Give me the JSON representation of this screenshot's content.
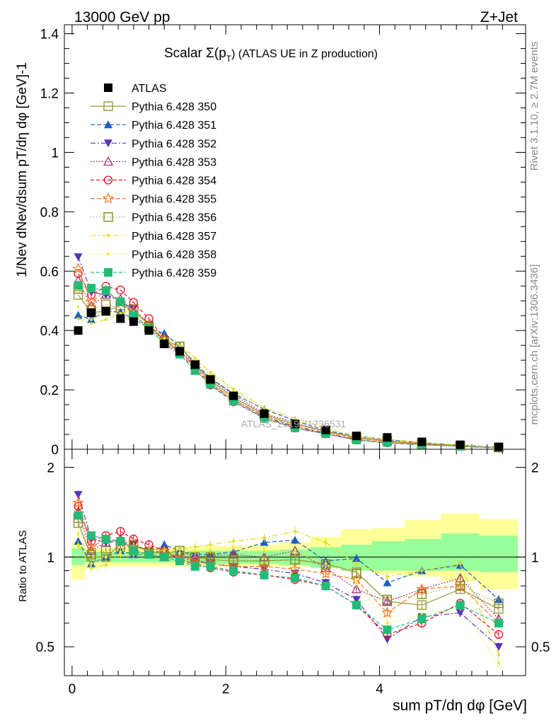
{
  "header": {
    "left": "13000 GeV pp",
    "right": "Z+Jet"
  },
  "side_text": {
    "rivet": "Rivet 3.1.10, ≥ 2.7M events",
    "mcplots": "mcplots.cern.ch [arXiv:1306.3436]"
  },
  "watermark": "ATLAS_2019_I1736531",
  "colors": {
    "band_outer": "#ffff99",
    "band_inner": "#99ff99",
    "ATLAS": "#000000",
    "350": "#999933",
    "351": "#1f5fbf",
    "352": "#5533bb",
    "353": "#aa3377",
    "354": "#ee1122",
    "355": "#ff7722",
    "356": "#888822",
    "357": "#dddd22",
    "358": "#eeee33",
    "359": "#22bb77"
  },
  "chart_data": {
    "type": "line",
    "title": "Scalar Σ(pT) (ATLAS UE in Z production)",
    "title_main": "Scalar Σ(p",
    "title_sub": "T",
    "title_tail": ") (ATLAS UE in Z production)",
    "ylabel": "1/Nev dNev/dsum pT/dη dφ [GeV]-1",
    "xlabel": "sum pT/dη dφ [GeV]",
    "ratio_ylabel": "Ratio to ATLAS",
    "xlim": [
      -0.1,
      5.9
    ],
    "ylim": [
      0,
      1.43
    ],
    "ratio_ylim": [
      0.4,
      2.3
    ],
    "ratio_log": true,
    "legend_position": "top-left",
    "x_ticks": [
      "0",
      "2",
      "4"
    ],
    "y_ticks": [
      "0",
      "0.2",
      "0.4",
      "0.6",
      "0.8",
      "1",
      "1.2",
      "1.4"
    ],
    "ratio_ticks_left": [
      "0.5",
      "1",
      "2"
    ],
    "ratio_ticks_right": [
      "0.5",
      "1",
      "2"
    ],
    "x": [
      0.08,
      0.25,
      0.44,
      0.63,
      0.8,
      1.0,
      1.2,
      1.4,
      1.6,
      1.8,
      2.1,
      2.5,
      2.9,
      3.3,
      3.7,
      4.1,
      4.55,
      5.05,
      5.55
    ],
    "data": {
      "name": "ATLAS",
      "values": [
        0.4,
        0.46,
        0.465,
        0.44,
        0.43,
        0.4,
        0.355,
        0.33,
        0.285,
        0.235,
        0.18,
        0.12,
        0.085,
        0.065,
        0.045,
        0.04,
        0.025,
        0.015,
        0.008
      ]
    },
    "band_outer": [
      [
        0.84,
        1.12
      ],
      [
        0.91,
        1.07
      ],
      [
        0.93,
        1.07
      ],
      [
        0.93,
        1.07
      ],
      [
        0.93,
        1.08
      ],
      [
        0.93,
        1.08
      ],
      [
        0.93,
        1.08
      ],
      [
        0.93,
        1.08
      ],
      [
        0.93,
        1.09
      ],
      [
        0.93,
        1.09
      ],
      [
        0.93,
        1.09
      ],
      [
        0.93,
        1.1
      ],
      [
        0.93,
        1.12
      ],
      [
        0.93,
        1.17
      ],
      [
        0.92,
        1.24
      ],
      [
        0.88,
        1.25
      ],
      [
        0.86,
        1.33
      ],
      [
        0.83,
        1.4
      ],
      [
        0.78,
        1.34
      ]
    ],
    "band_inner": [
      [
        0.94,
        1.07
      ],
      [
        0.96,
        1.04
      ],
      [
        0.96,
        1.04
      ],
      [
        0.96,
        1.04
      ],
      [
        0.96,
        1.04
      ],
      [
        0.96,
        1.04
      ],
      [
        0.96,
        1.04
      ],
      [
        0.96,
        1.04
      ],
      [
        0.95,
        1.05
      ],
      [
        0.95,
        1.05
      ],
      [
        0.95,
        1.05
      ],
      [
        0.95,
        1.05
      ],
      [
        0.94,
        1.06
      ],
      [
        0.92,
        1.08
      ],
      [
        0.9,
        1.1
      ],
      [
        0.9,
        1.13
      ],
      [
        0.9,
        1.15
      ],
      [
        0.9,
        1.2
      ],
      [
        0.89,
        1.18
      ]
    ],
    "series": [
      {
        "name": "Pythia 6.428 350",
        "key": "350",
        "marker": "square-open",
        "dash": "",
        "ratio": [
          1.3,
          1.0,
          1.0,
          1.1,
          1.1,
          1.04,
          1.03,
          1.05,
          1.0,
          0.98,
          0.97,
          0.97,
          0.98,
          0.95,
          0.89,
          0.71,
          0.69,
          0.78,
          0.67
        ]
      },
      {
        "name": "Pythia 6.428 351",
        "key": "351",
        "marker": "triangle-up-filled",
        "dash": "6,3",
        "ratio": [
          1.13,
          0.95,
          1.0,
          1.05,
          1.02,
          1.02,
          1.1,
          1.05,
          1.02,
          1.02,
          1.04,
          1.12,
          1.14,
          0.97,
          0.99,
          0.82,
          0.9,
          0.94,
          0.72
        ]
      },
      {
        "name": "Pythia 6.428 352",
        "key": "352",
        "marker": "triangle-down-filled",
        "dash": "7,3,2,3",
        "ratio": [
          1.62,
          1.15,
          1.12,
          1.13,
          1.1,
          1.05,
          1.03,
          1.0,
          0.97,
          0.95,
          0.93,
          0.91,
          0.88,
          0.82,
          0.72,
          0.53,
          0.63,
          0.65,
          0.5
        ]
      },
      {
        "name": "Pythia 6.428 353",
        "key": "353",
        "marker": "triangle-up-open",
        "dash": "2,2",
        "ratio": [
          1.42,
          1.05,
          1.12,
          1.15,
          1.05,
          1.02,
          1.0,
          1.0,
          1.0,
          1.01,
          1.02,
          1.0,
          1.05,
          0.92,
          0.78,
          0.71,
          0.78,
          0.85,
          0.62
        ]
      },
      {
        "name": "Pythia 6.428 354",
        "key": "354",
        "marker": "circle-open",
        "dash": "5,3",
        "ratio": [
          1.48,
          1.13,
          1.18,
          1.22,
          1.15,
          1.1,
          1.05,
          0.98,
          0.95,
          0.92,
          0.89,
          0.87,
          0.84,
          0.8,
          0.69,
          0.55,
          0.6,
          0.7,
          0.55
        ]
      },
      {
        "name": "Pythia 6.428 355",
        "key": "355",
        "marker": "star-open",
        "dash": "6,3",
        "ratio": [
          1.52,
          1.08,
          1.15,
          1.12,
          1.08,
          1.05,
          1.04,
          1.0,
          0.98,
          0.95,
          0.93,
          0.93,
          0.91,
          0.88,
          0.84,
          0.65,
          0.78,
          0.8,
          0.6
        ]
      },
      {
        "name": "Pythia 6.428 356",
        "key": "356",
        "marker": "square-open",
        "dash": "1,3",
        "ratio": [
          1.35,
          1.02,
          1.05,
          1.08,
          1.05,
          1.03,
          1.02,
          1.05,
          1.0,
          1.0,
          0.98,
          0.97,
          0.98,
          0.94,
          0.88,
          0.72,
          0.75,
          0.8,
          0.7
        ]
      },
      {
        "name": "Pythia 6.428 357",
        "key": "357",
        "marker": "dot",
        "dash": "8,3,2,3",
        "ratio": [
          1.1,
          0.92,
          0.94,
          1.04,
          1.08,
          1.05,
          1.05,
          1.06,
          1.08,
          1.1,
          1.13,
          1.16,
          1.22,
          1.12,
          0.95,
          0.86,
          0.9,
          0.95,
          0.47
        ]
      },
      {
        "name": "Pythia 6.428 358",
        "key": "358",
        "marker": "dot",
        "dash": "1,2",
        "ratio": [
          1.2,
          0.95,
          1.0,
          1.02,
          1.02,
          1.02,
          1.02,
          1.03,
          1.05,
          1.06,
          1.08,
          1.06,
          1.04,
          0.95,
          0.82,
          0.6,
          0.64,
          0.68,
          0.44
        ]
      },
      {
        "name": "Pythia 6.428 359",
        "key": "359",
        "marker": "square-filled",
        "dash": "5,3",
        "ratio": [
          1.38,
          1.18,
          1.15,
          1.13,
          1.05,
          1.02,
          1.0,
          0.97,
          0.93,
          0.93,
          0.9,
          0.87,
          0.85,
          0.8,
          0.69,
          0.57,
          0.62,
          0.69,
          0.6
        ]
      }
    ]
  }
}
